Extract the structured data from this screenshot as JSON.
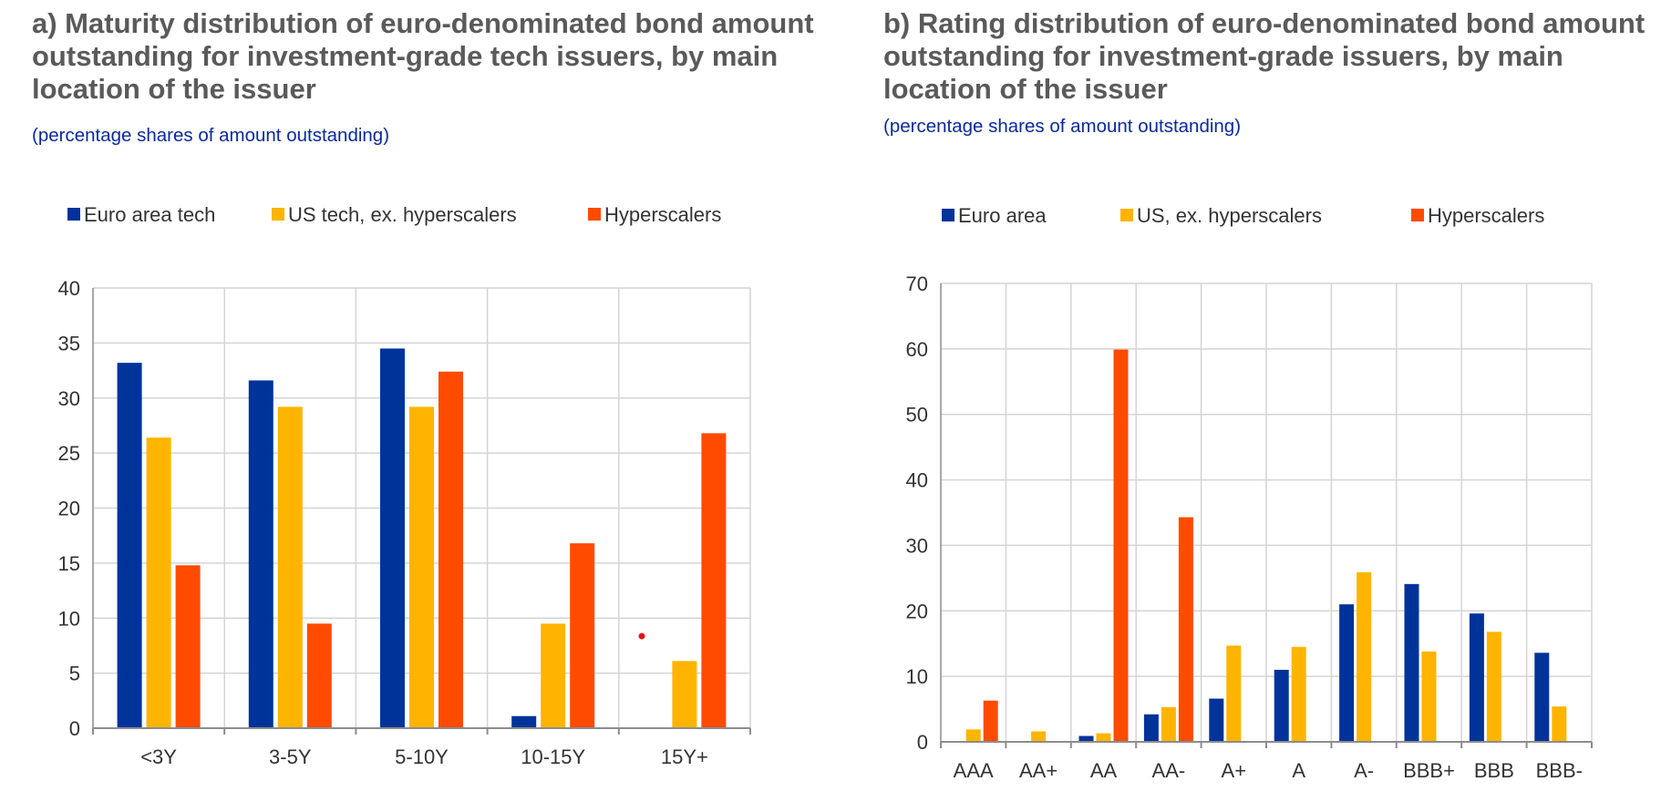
{
  "chart_data": [
    {
      "type": "bar",
      "title": "a) Maturity distribution of euro-denominated bond amount outstanding for investment-grade tech issuers, by main location of the issuer",
      "subtitle": "(percentage shares of amount outstanding)",
      "categories": [
        "<3Y",
        "3-5Y",
        "5-10Y",
        "10-15Y",
        "15Y+"
      ],
      "series": [
        {
          "name": "Euro area tech",
          "color": "#00339a",
          "values": [
            33.2,
            31.6,
            34.5,
            1.1,
            0
          ]
        },
        {
          "name": "US tech, ex. hyperscalers",
          "color": "#ffb400",
          "values": [
            26.4,
            29.2,
            29.2,
            9.5,
            6.1
          ]
        },
        {
          "name": "Hyperscalers",
          "color": "#ff4b00",
          "values": [
            14.8,
            9.5,
            32.4,
            16.8,
            26.8
          ]
        }
      ],
      "ylim": [
        0,
        40
      ],
      "yticks": [
        0,
        5,
        10,
        15,
        20,
        25,
        30,
        35,
        40
      ],
      "grid": true,
      "legend_position": "top"
    },
    {
      "type": "bar",
      "title": "b) Rating distribution of euro-denominated bond amount outstanding for investment-grade issuers, by main location of the issuer",
      "subtitle": "(percentage shares of amount outstanding)",
      "categories": [
        "AAA",
        "AA+",
        "AA",
        "AA-",
        "A+",
        "A",
        "A-",
        "BBB+",
        "BBB",
        "BBB-"
      ],
      "series": [
        {
          "name": "Euro area",
          "color": "#00339a",
          "values": [
            0,
            0,
            0.9,
            4.2,
            6.6,
            11.0,
            21.0,
            24.1,
            19.6,
            13.6
          ]
        },
        {
          "name": "US, ex. hyperscalers",
          "color": "#ffb400",
          "values": [
            1.9,
            1.6,
            1.3,
            5.3,
            14.7,
            14.5,
            25.9,
            13.8,
            16.8,
            5.4
          ]
        },
        {
          "name": "Hyperscalers",
          "color": "#ff4b00",
          "values": [
            6.3,
            0,
            59.9,
            34.3,
            0,
            0,
            0,
            0,
            0,
            0
          ]
        }
      ],
      "ylim": [
        0,
        70
      ],
      "yticks": [
        0,
        10,
        20,
        30,
        40,
        50,
        60,
        70
      ],
      "grid": true,
      "legend_position": "top"
    }
  ]
}
